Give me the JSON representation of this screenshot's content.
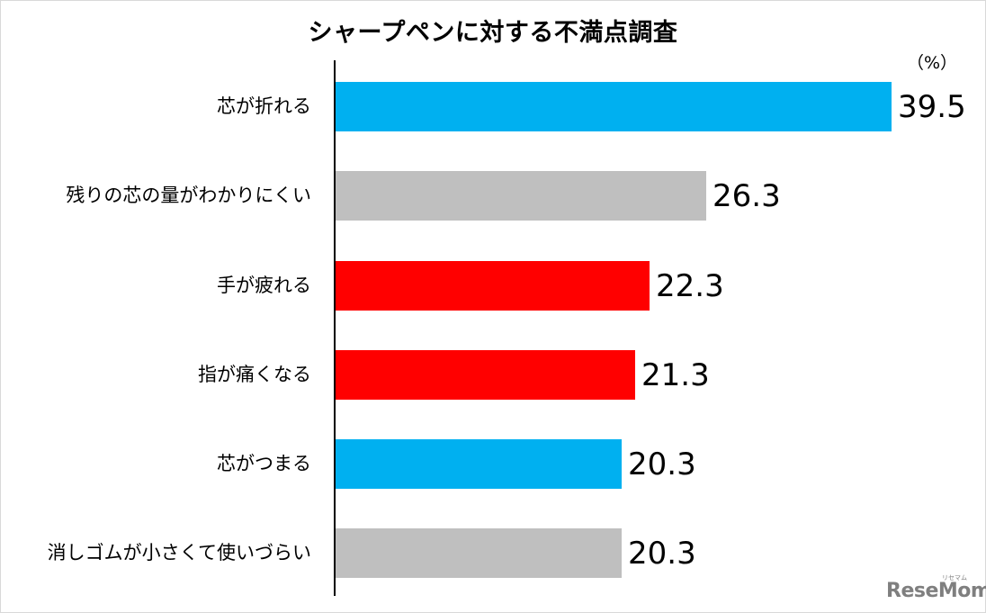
{
  "chart_data": {
    "type": "bar",
    "orientation": "horizontal",
    "title": "シャープペンに対する不満点調査",
    "unit_label": "（%）",
    "xlabel": "",
    "ylabel": "",
    "categories": [
      "芯が折れる",
      "残りの芯の量がわかりにくい",
      "手が疲れる",
      "指が痛くなる",
      "芯がつまる",
      "消しゴムが小さくて使いづらい"
    ],
    "values": [
      39.5,
      26.3,
      22.3,
      21.3,
      20.3,
      20.3
    ],
    "value_labels": [
      "39.5",
      "26.3",
      "22.3",
      "21.3",
      "20.3",
      "20.3"
    ],
    "colors": [
      "#00b0f0",
      "#bfbfbf",
      "#ff0000",
      "#ff0000",
      "#00b0f0",
      "#bfbfbf"
    ],
    "xlim": [
      0,
      45
    ],
    "grid": false,
    "legend": null,
    "data_labels": true
  },
  "watermark": {
    "text": "ReseMom",
    "kana": "リセマム"
  },
  "palette": {
    "blue": "#00b0f0",
    "gray": "#bfbfbf",
    "red": "#ff0000"
  }
}
